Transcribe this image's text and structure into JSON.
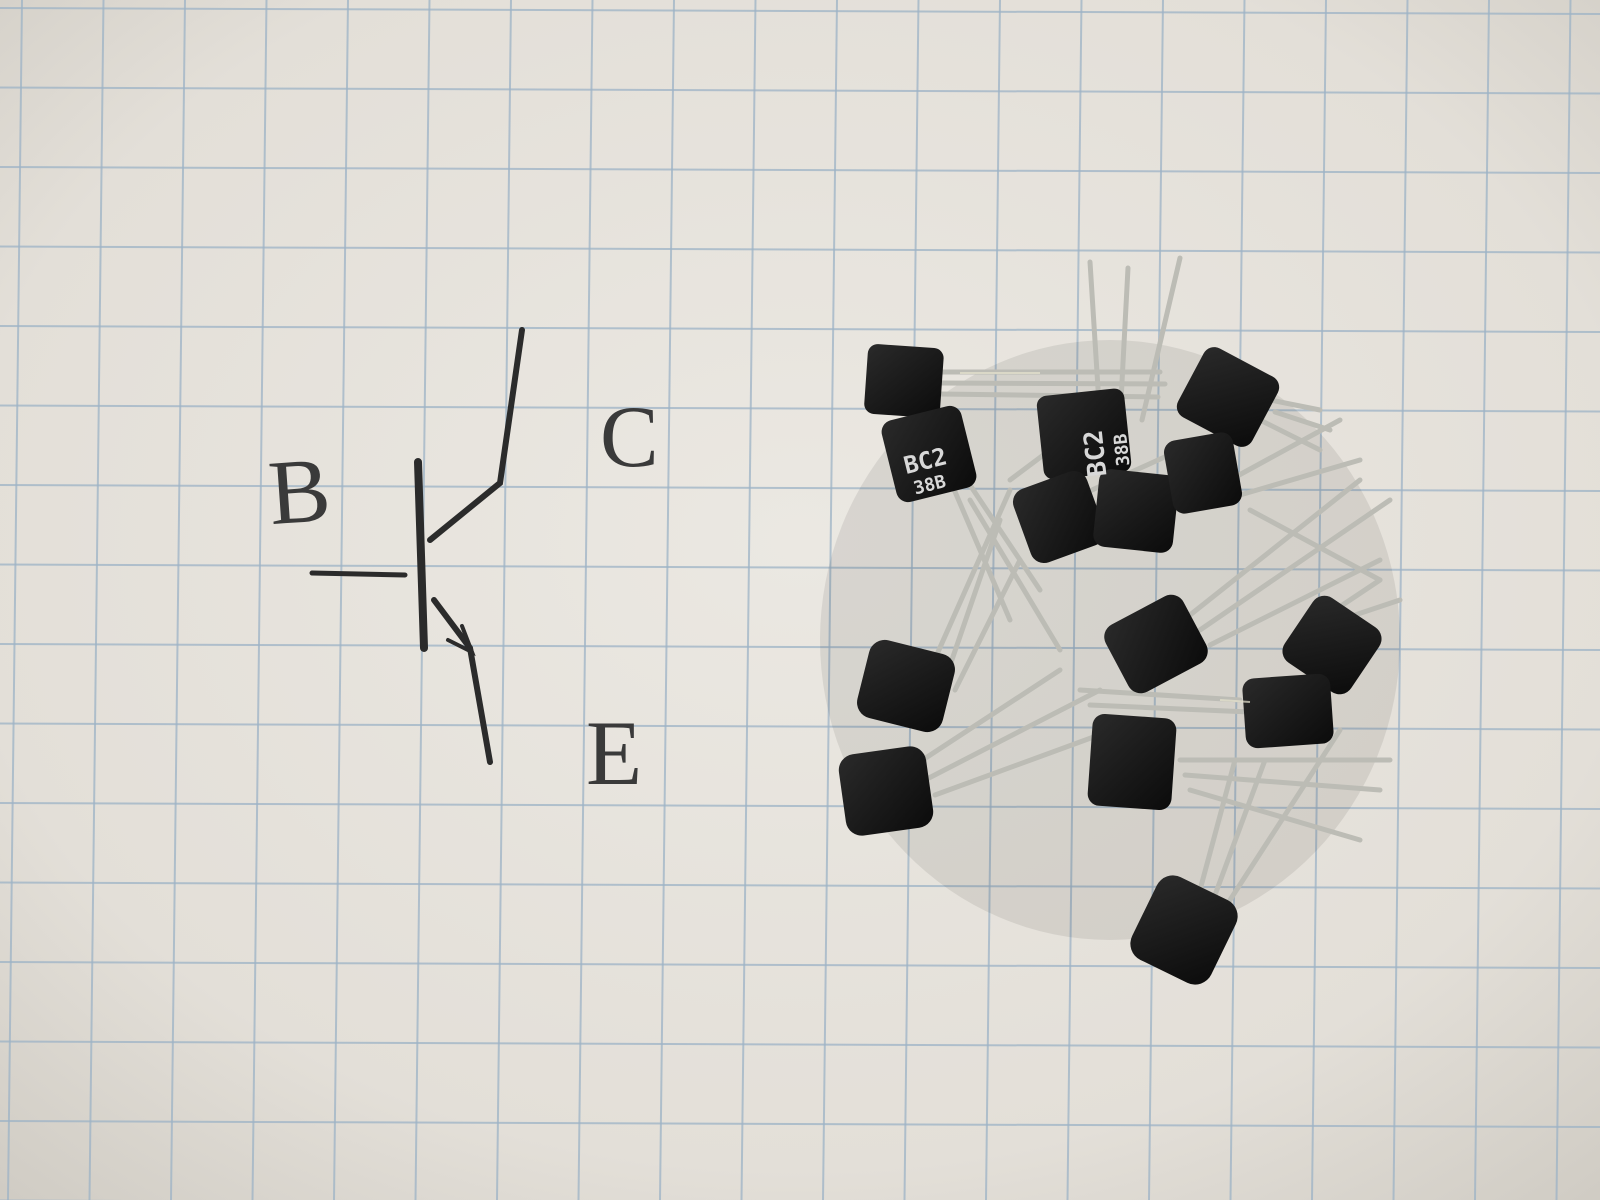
{
  "photo": {
    "subject": "Hand-drawn NPN transistor symbol on grid paper beside a pile of TO-92 transistors",
    "paper_color": "#e6e3dd",
    "grid_color": "#9db3c6",
    "ink_color": "#2b2b2b",
    "component_color": "#141414",
    "lead_color": "#b9b9b2"
  },
  "sketch": {
    "label_base": "B",
    "label_collector": "C",
    "label_emitter": "E"
  },
  "components": {
    "marking_line1": "BC2",
    "marking_line2": "38B"
  }
}
